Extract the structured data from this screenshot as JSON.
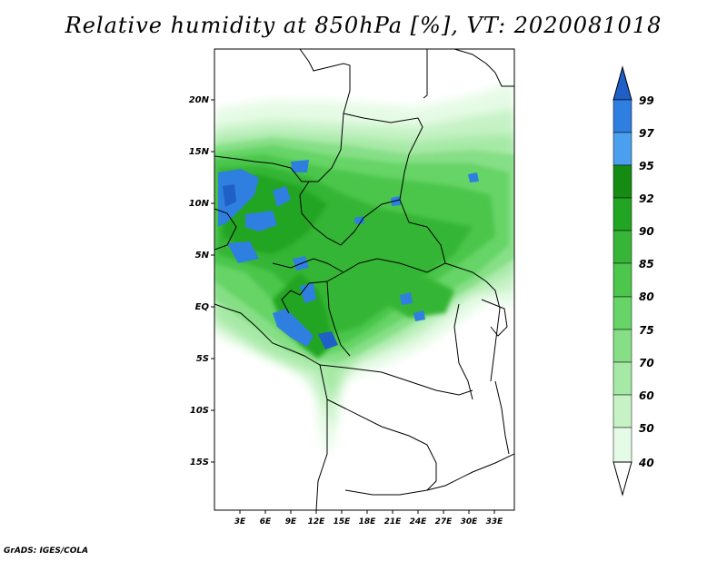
{
  "title": "Relative humidity at 850hPa [%], VT: 2020081018",
  "footer": "GrADS: IGES/COLA",
  "map": {
    "lat_labels": [
      "20N",
      "15N",
      "10N",
      "5N",
      "EQ",
      "5S",
      "10S",
      "15S"
    ],
    "lon_labels": [
      "3E",
      "6E",
      "9E",
      "12E",
      "15E",
      "18E",
      "21E",
      "24E",
      "27E",
      "30E",
      "33E"
    ],
    "field": "relative humidity",
    "level": "850hPa",
    "unit": "%"
  },
  "colorbar": {
    "levels": [
      "99",
      "97",
      "95",
      "92",
      "90",
      "85",
      "80",
      "75",
      "70",
      "60",
      "50",
      "40"
    ],
    "colors": [
      "#1e5fc8",
      "#2f7fe0",
      "#4aa0ee",
      "#148c14",
      "#22a522",
      "#36b536",
      "#4cc64c",
      "#66d466",
      "#86df86",
      "#a6e9a6",
      "#c6f2c6",
      "#e6fbe6"
    ]
  }
}
